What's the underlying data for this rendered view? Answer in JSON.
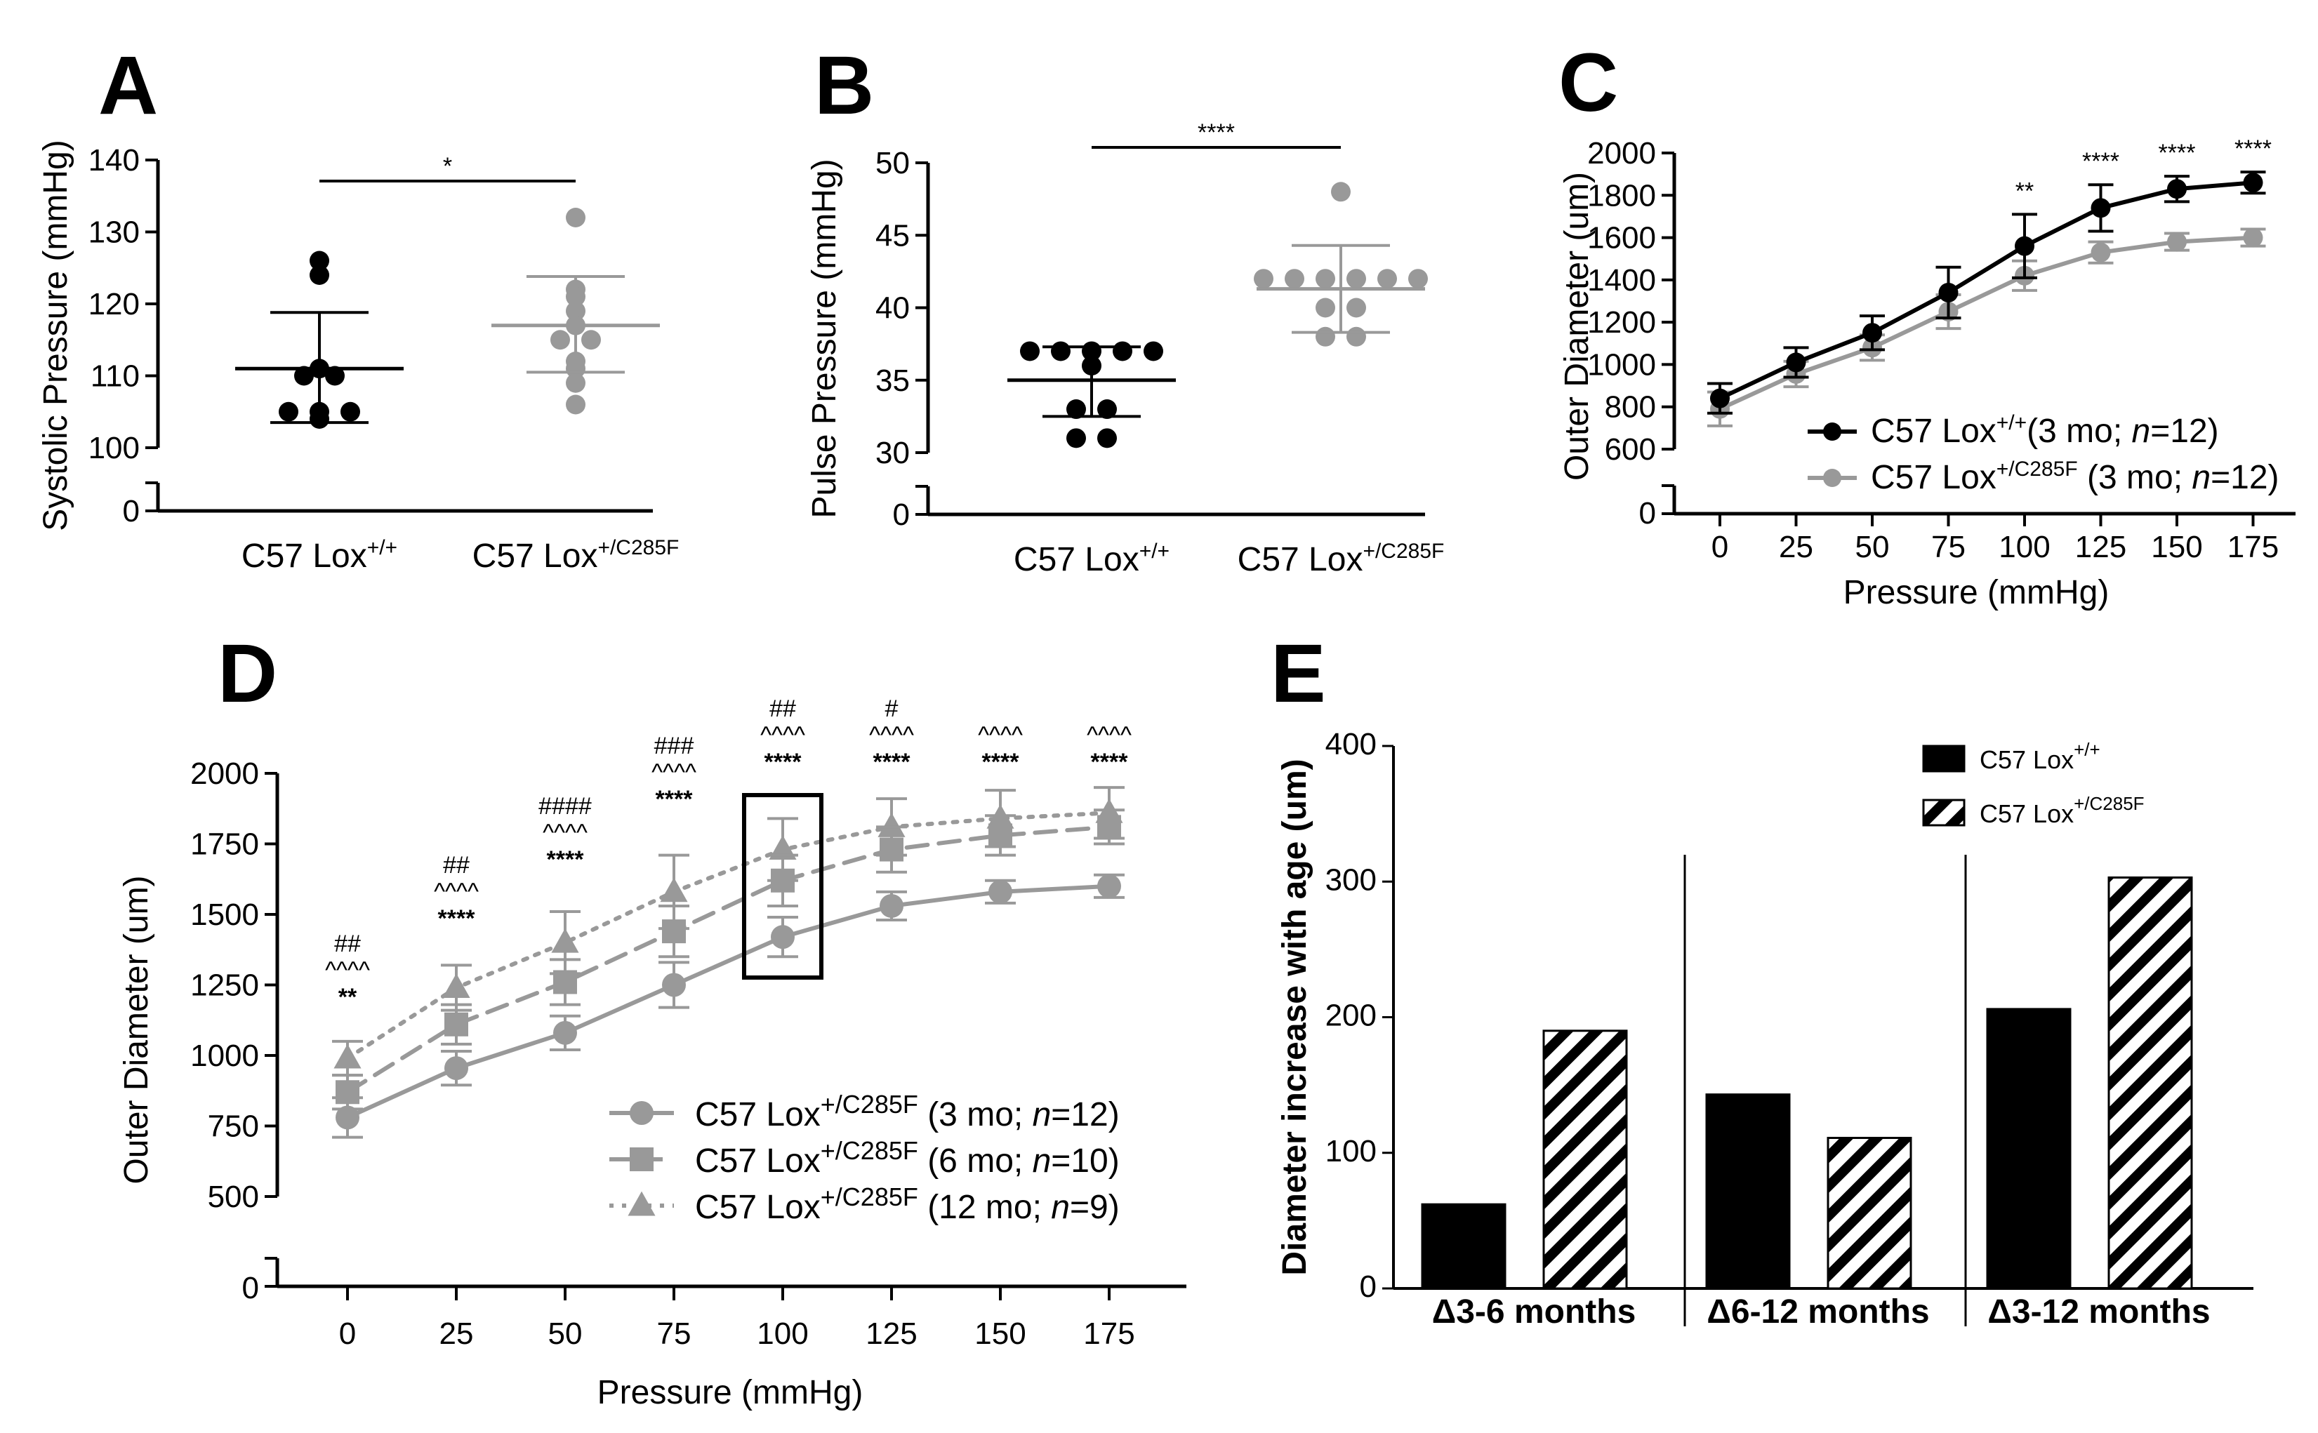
{
  "panels": {
    "A": "A",
    "B": "B",
    "C": "C",
    "D": "D",
    "E": "E"
  },
  "sup": {
    "wt": "+/+",
    "mut": "+/C285F"
  },
  "colors": {
    "black": "#000000",
    "gray": "#999999",
    "axis": "#000000"
  },
  "chart_data": [
    {
      "id": "A",
      "type": "scatter",
      "title": "",
      "ylabel": "Systolic Pressure (mmHg)",
      "ylim": [
        100,
        140
      ],
      "yticks": [
        140,
        130,
        120,
        110,
        100
      ],
      "ybreak_zero": "0",
      "groups": [
        {
          "name": "C57 Lox",
          "sup": "+/+",
          "color": "#000000",
          "points": [
            126,
            124,
            111,
            110,
            110,
            105,
            105,
            105,
            104
          ],
          "mean": 111,
          "sd_low": 103.5,
          "sd_high": 118.8
        },
        {
          "name": "C57 Lox",
          "sup": "+/C285F",
          "color": "#999999",
          "points": [
            132,
            122,
            121,
            119,
            117,
            115,
            115,
            112,
            111,
            109,
            106
          ],
          "mean": 117,
          "sd_low": 110.5,
          "sd_high": 123.8
        }
      ],
      "significance": "*"
    },
    {
      "id": "B",
      "type": "scatter",
      "title": "",
      "ylabel": "Pulse Pressure (mmHg)",
      "ylim": [
        30,
        50
      ],
      "yticks": [
        50,
        45,
        40,
        35,
        30
      ],
      "ybreak_zero": "0",
      "groups": [
        {
          "name": "C57 Lox",
          "sup": "+/+",
          "color": "#000000",
          "points": [
            37,
            37,
            37,
            37,
            37,
            36,
            33,
            33,
            31,
            31
          ],
          "mean": 35,
          "sd_low": 32.5,
          "sd_high": 37.3
        },
        {
          "name": "C57 Lox",
          "sup": "+/C285F",
          "color": "#999999",
          "points": [
            48,
            42,
            42,
            42,
            42,
            42,
            42,
            40,
            40,
            38,
            38
          ],
          "mean": 41.3,
          "sd_low": 38.3,
          "sd_high": 44.3
        }
      ],
      "significance": "****"
    },
    {
      "id": "C",
      "type": "line",
      "xlabel": "Pressure (mmHg)",
      "ylabel": "Outer Diameter (um)",
      "x": [
        0,
        25,
        50,
        75,
        100,
        125,
        150,
        175
      ],
      "ylim": [
        600,
        2000
      ],
      "yticks": [
        2000,
        1800,
        1600,
        1400,
        1200,
        1000,
        800,
        600
      ],
      "ybreak_zero": "0",
      "series": [
        {
          "name": "C57 Lox",
          "sup": "+/+",
          "tail": "(3 mo; ",
          "n": "n",
          "nval": "=12)",
          "color": "#000000",
          "values": [
            840,
            1010,
            1150,
            1340,
            1560,
            1740,
            1830,
            1860
          ],
          "errors": [
            70,
            70,
            80,
            120,
            150,
            110,
            60,
            50
          ]
        },
        {
          "name": "C57 Lox",
          "sup": "+/C285F",
          "tail": " (3 mo; ",
          "n": "n",
          "nval": "=12)",
          "color": "#999999",
          "values": [
            790,
            955,
            1080,
            1250,
            1420,
            1530,
            1580,
            1600
          ],
          "errors": [
            80,
            60,
            60,
            80,
            70,
            50,
            40,
            40
          ]
        }
      ],
      "annotations": [
        "",
        "",
        "",
        "",
        "**",
        "****",
        "****",
        "****"
      ]
    },
    {
      "id": "D",
      "type": "line",
      "xlabel": "Pressure (mmHg)",
      "ylabel": "Outer Diameter (um)",
      "x": [
        0,
        25,
        50,
        75,
        100,
        125,
        150,
        175
      ],
      "ylim": [
        500,
        2000
      ],
      "yticks": [
        2000,
        1750,
        1500,
        1250,
        1000,
        750,
        500
      ],
      "ybreak_zero": "0",
      "series": [
        {
          "name": "C57 Lox",
          "sup": "+/C285F",
          "tail": " (3 mo; ",
          "n": "n",
          "nval": "=12)",
          "color": "#999999",
          "dash": "solid",
          "marker": "circle",
          "values": [
            780,
            955,
            1080,
            1250,
            1420,
            1530,
            1580,
            1600
          ],
          "errors": [
            70,
            60,
            60,
            80,
            70,
            50,
            40,
            40
          ]
        },
        {
          "name": "C57 Lox",
          "sup": "+/C285F",
          "tail": " (6 mo; ",
          "n": "n",
          "nval": "=10)",
          "color": "#999999",
          "dash": "dashed",
          "marker": "square",
          "values": [
            870,
            1110,
            1260,
            1440,
            1620,
            1730,
            1780,
            1810
          ],
          "errors": [
            60,
            70,
            80,
            90,
            90,
            80,
            70,
            60
          ]
        },
        {
          "name": "C57 Lox",
          "sup": "+/C285F",
          "tail": " (12 mo; ",
          "n": "n",
          "nval": "=9)",
          "color": "#999999",
          "dash": "dotted",
          "marker": "triangle",
          "values": [
            990,
            1240,
            1400,
            1580,
            1730,
            1810,
            1840,
            1860
          ],
          "errors": [
            60,
            80,
            110,
            130,
            110,
            100,
            100,
            90
          ]
        }
      ],
      "annotations": [
        [
          "##",
          "^^^^",
          "**"
        ],
        [
          "##",
          "^^^^",
          "****"
        ],
        [
          "####",
          "^^^^",
          "****"
        ],
        [
          "###",
          "^^^^",
          "****"
        ],
        [
          "##",
          "^^^^",
          "****"
        ],
        [
          "#",
          "^^^^",
          "****"
        ],
        [
          "^^^^",
          "****"
        ],
        [
          "^^^^",
          "****"
        ]
      ],
      "highlight_x": 100
    },
    {
      "id": "E",
      "type": "bar",
      "ylabel": "Diameter increase with age (um)",
      "categories": [
        "Δ3-6 months",
        "Δ6-12 months",
        "Δ3-12 months"
      ],
      "ylim": [
        0,
        400
      ],
      "yticks": [
        400,
        300,
        200,
        100,
        0
      ],
      "series": [
        {
          "name": "C57 Lox",
          "sup": "+/+",
          "fill": "solid",
          "values": [
            62,
            143,
            206
          ]
        },
        {
          "name": "C57 Lox",
          "sup": "+/C285F",
          "fill": "hatched",
          "values": [
            190,
            111,
            303
          ]
        }
      ]
    }
  ]
}
